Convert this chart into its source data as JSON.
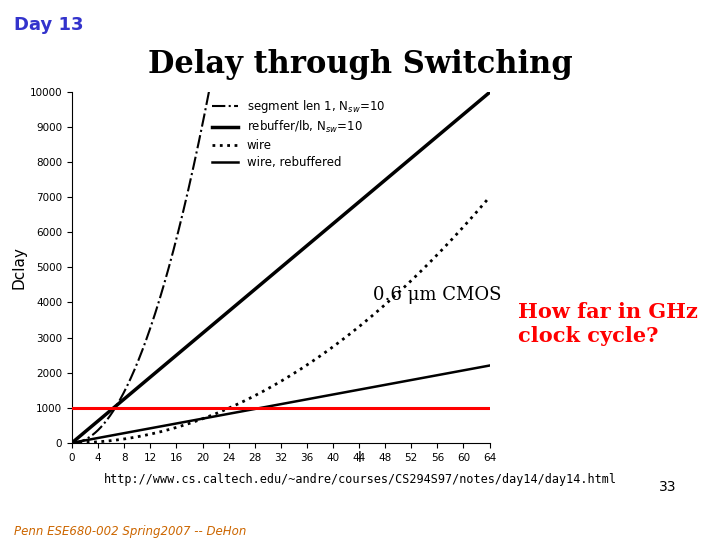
{
  "title": "Delay through Switching",
  "day_label": "Day 13",
  "ylabel": "Dclay",
  "xlim": [
    0,
    64
  ],
  "ylim": [
    0,
    10000
  ],
  "xticks": [
    0,
    4,
    8,
    12,
    16,
    20,
    24,
    28,
    32,
    36,
    40,
    44,
    48,
    52,
    56,
    60,
    64
  ],
  "yticks": [
    0,
    1000,
    2000,
    3000,
    4000,
    5000,
    6000,
    7000,
    8000,
    9000,
    10000
  ],
  "cmos_label": "0.6 μm CMOS",
  "how_far_label": "How far in GHz\nclock cycle?",
  "url_label": "http://www.cs.caltech.edu/~andre/courses/CS294S97/notes/day14/day14.html",
  "page_number": "33",
  "footer_label": "Penn ESE680-002 Spring2007 -- DeHon",
  "red_line_y": 1000,
  "legend_labels": [
    "segment len 1, N$_{sw}$=10",
    "rebuffer/lb, N$_{sw}$=10",
    "wire",
    "wire, rebuffered"
  ],
  "background_color": "#ffffff",
  "title_fontsize": 22,
  "day_fontsize": 13,
  "annotation_fontsize": 13,
  "how_far_fontsize": 15
}
